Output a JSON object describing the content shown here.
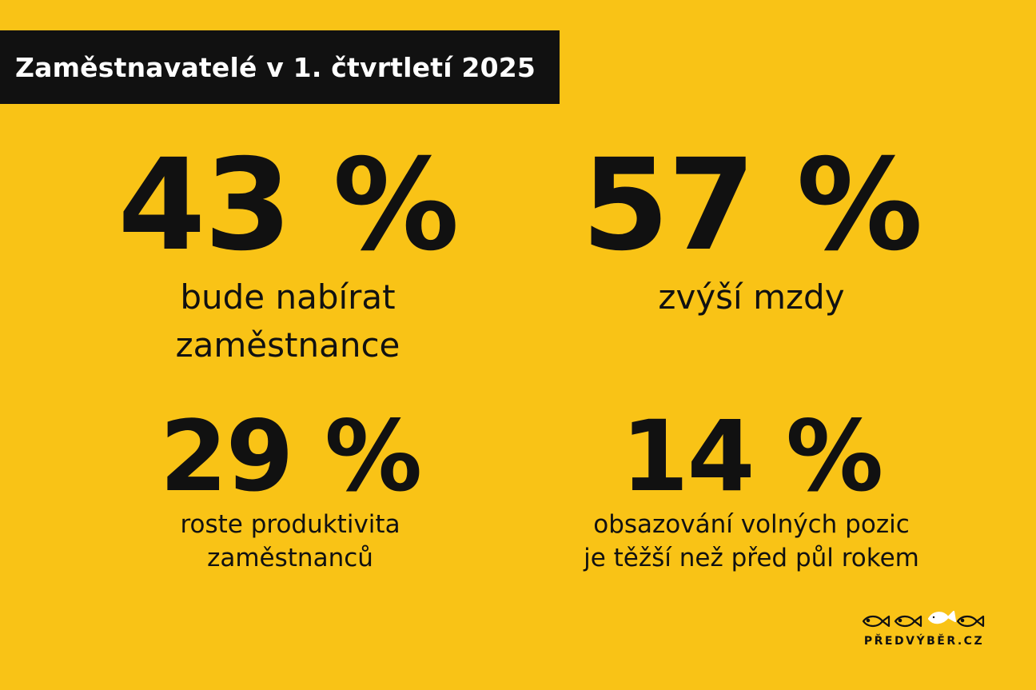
{
  "header": {
    "title": "Zaměstnavatelé v 1. čtvrtletí 2025"
  },
  "stats": [
    {
      "value": "43 %",
      "label_lines": [
        "bude nabírat",
        "zaměstnance"
      ]
    },
    {
      "value": "57 %",
      "label_lines": [
        "zvýší mzdy"
      ]
    },
    {
      "value": "29 %",
      "label_lines": [
        "roste produktivita",
        "zaměstnanců"
      ]
    },
    {
      "value": "14 %",
      "label_lines": [
        "obsazování volných pozic",
        "je těžší než před půl rokem"
      ]
    }
  ],
  "logo": {
    "text": "PŘEDVÝBĚR.CZ",
    "icon": "fish-row-icon"
  },
  "colors": {
    "background": "#f9c316",
    "header_background": "#111111",
    "header_text": "#ffffff",
    "text": "#111111"
  }
}
